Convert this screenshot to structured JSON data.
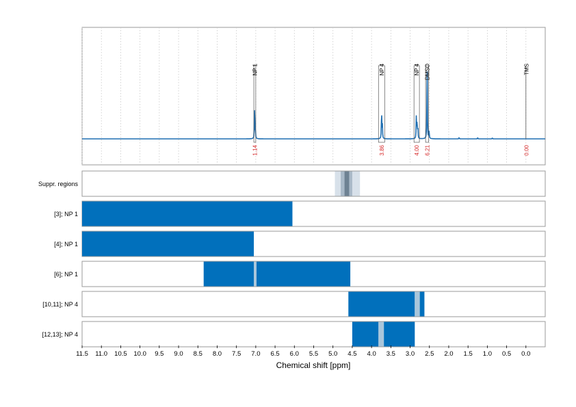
{
  "chart_data": {
    "type": "spectrum",
    "xlabel": "Chemical shift [ppm]",
    "xlim": [
      11.5,
      -0.5
    ],
    "x_reversed": true,
    "xticks": [
      "11.5",
      "11.0",
      "10.5",
      "10.0",
      "9.5",
      "9.0",
      "8.5",
      "8.0",
      "7.5",
      "7.0",
      "6.5",
      "6.0",
      "5.5",
      "5.0",
      "4.5",
      "4.0",
      "3.5",
      "3.0",
      "2.5",
      "2.0",
      "1.5",
      "1.0",
      "0.5",
      "0.0"
    ],
    "spectrum": {
      "color": "#1F6FB2",
      "baseline_color": "#1F6FB2",
      "peaks": [
        {
          "ppm": 7.03,
          "height": 0.56
        },
        {
          "ppm": 7.01,
          "height": 0.12
        },
        {
          "ppm": 3.74,
          "height": 0.46
        },
        {
          "ppm": 3.72,
          "height": 0.22
        },
        {
          "ppm": 2.84,
          "height": 0.35
        },
        {
          "ppm": 2.82,
          "height": 0.28
        },
        {
          "ppm": 2.8,
          "height": 0.18
        },
        {
          "ppm": 2.56,
          "height": 1.2
        },
        {
          "ppm": 2.51,
          "height": 0.14
        },
        {
          "ppm": 1.73,
          "height": 0.02
        },
        {
          "ppm": 1.25,
          "height": 0.02
        },
        {
          "ppm": 0.87,
          "height": 0.015
        }
      ]
    },
    "annotations": [
      {
        "label": "NP 1",
        "ppm": 7.02,
        "from": 7.05,
        "to": 7.0,
        "box_top": 0.62,
        "value": "1.14"
      },
      {
        "label": "NP 4",
        "ppm": 3.74,
        "from": 3.82,
        "to": 3.66,
        "box_top": 0.62,
        "value": "3.86"
      },
      {
        "label": "NP 4",
        "ppm": 2.82,
        "from": 2.9,
        "to": 2.76,
        "box_top": 0.62,
        "value": "4.00"
      },
      {
        "label": "DMSO",
        "ppm": 2.56,
        "from": 2.6,
        "to": 2.52,
        "box_top": 0.62,
        "value": "6.21"
      },
      {
        "label": "TMS",
        "ppm": 0.0,
        "from": 0.0,
        "to": 0.0,
        "box_top": 0.62,
        "value": "0.00"
      }
    ],
    "annotation_value_color": "#D62728",
    "tracks": [
      {
        "label": "Suppr. regions",
        "segments": [
          {
            "from": 4.95,
            "to": 4.3,
            "color": "#D8E1EA"
          },
          {
            "from": 4.8,
            "to": 4.5,
            "color": "#A9B9C8"
          },
          {
            "from": 4.7,
            "to": 4.58,
            "color": "#6E8293"
          }
        ]
      },
      {
        "label": "[3]; NP 1",
        "segments": [
          {
            "from": 11.5,
            "to": 6.05,
            "color": "#0170BC"
          }
        ]
      },
      {
        "label": "[4]; NP 1",
        "segments": [
          {
            "from": 11.5,
            "to": 7.05,
            "color": "#0170BC"
          }
        ]
      },
      {
        "label": "[6]; NP 1",
        "segments": [
          {
            "from": 8.35,
            "to": 7.05,
            "color": "#0170BC"
          },
          {
            "from": 7.05,
            "to": 6.98,
            "color": "#A9C6DB"
          },
          {
            "from": 6.98,
            "to": 4.55,
            "color": "#0170BC"
          }
        ]
      },
      {
        "label": "[10,11]; NP 4",
        "segments": [
          {
            "from": 4.6,
            "to": 2.88,
            "color": "#0170BC"
          },
          {
            "from": 2.88,
            "to": 2.75,
            "color": "#A9C6DB"
          },
          {
            "from": 2.75,
            "to": 2.63,
            "color": "#0170BC"
          }
        ]
      },
      {
        "label": "[12,13]; NP 4",
        "segments": [
          {
            "from": 4.5,
            "to": 3.82,
            "color": "#0170BC"
          },
          {
            "from": 3.82,
            "to": 3.68,
            "color": "#A9C6DB"
          },
          {
            "from": 3.68,
            "to": 2.88,
            "color": "#0170BC"
          }
        ]
      }
    ],
    "grid": {
      "vertical": true,
      "style": "dotted"
    }
  }
}
